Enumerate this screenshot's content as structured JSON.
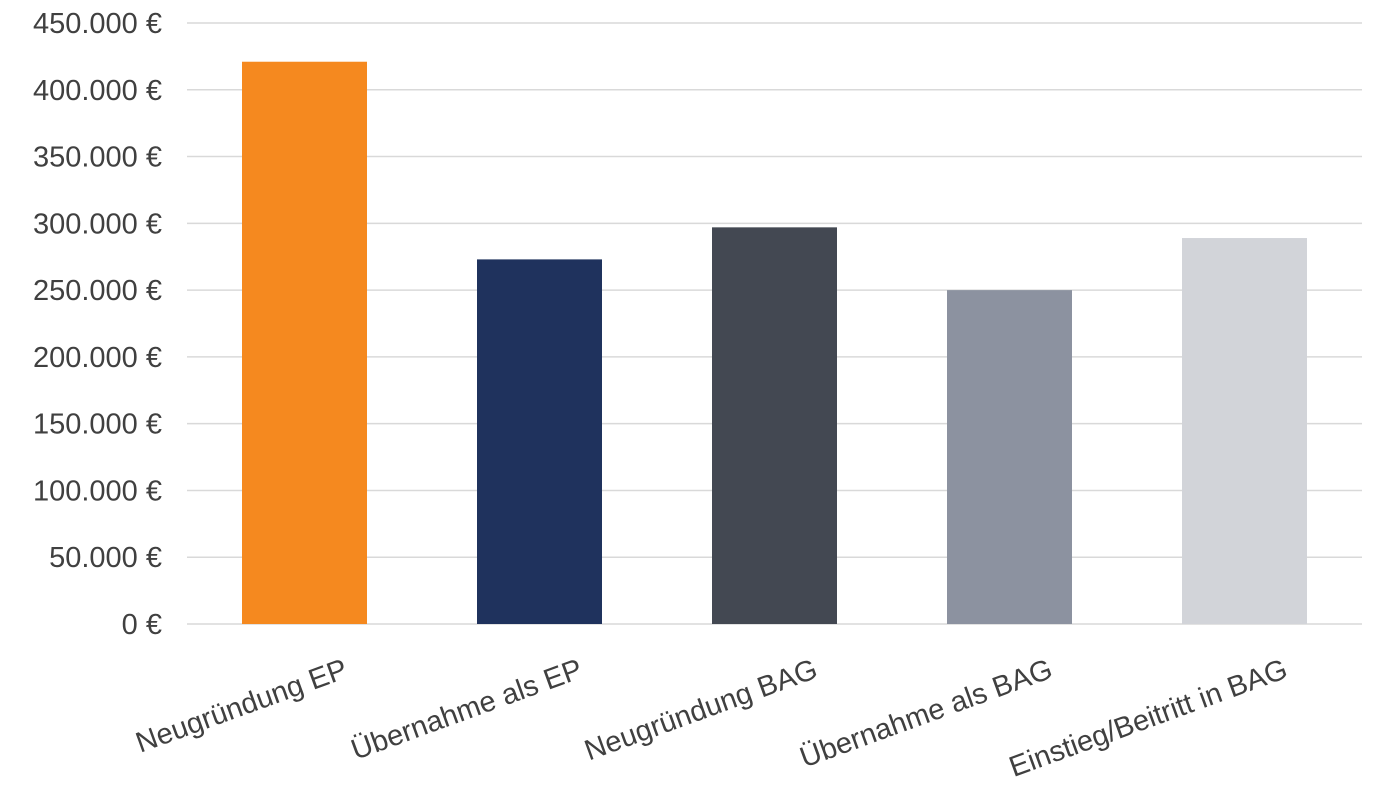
{
  "chart_data": {
    "type": "bar",
    "title": "",
    "xlabel": "",
    "ylabel": "",
    "categories": [
      "Neugründung EP",
      "Übernahme als EP",
      "Neugründung BAG",
      "Übernahme als BAG",
      "Einstieg/Beitritt in BAG"
    ],
    "values": [
      421000,
      273000,
      297000,
      250000,
      289000
    ],
    "colors": [
      "#f5891f",
      "#1f325d",
      "#434852",
      "#8c92a0",
      "#d2d4d9"
    ],
    "ylim": [
      0,
      450000
    ],
    "yticks": [
      {
        "value": 0,
        "label": "0 €"
      },
      {
        "value": 50000,
        "label": "50.000 €"
      },
      {
        "value": 100000,
        "label": "100.000 €"
      },
      {
        "value": 150000,
        "label": "150.000 €"
      },
      {
        "value": 200000,
        "label": "200.000 €"
      },
      {
        "value": 250000,
        "label": "250.000 €"
      },
      {
        "value": 300000,
        "label": "300.000 €"
      },
      {
        "value": 350000,
        "label": "350.000 €"
      },
      {
        "value": 400000,
        "label": "400.000 €"
      },
      {
        "value": 450000,
        "label": "450.000 €"
      }
    ],
    "grid": true,
    "legend": "none",
    "colors_meta": {
      "gridline": "#d9d9d9",
      "text": "#404040"
    }
  }
}
